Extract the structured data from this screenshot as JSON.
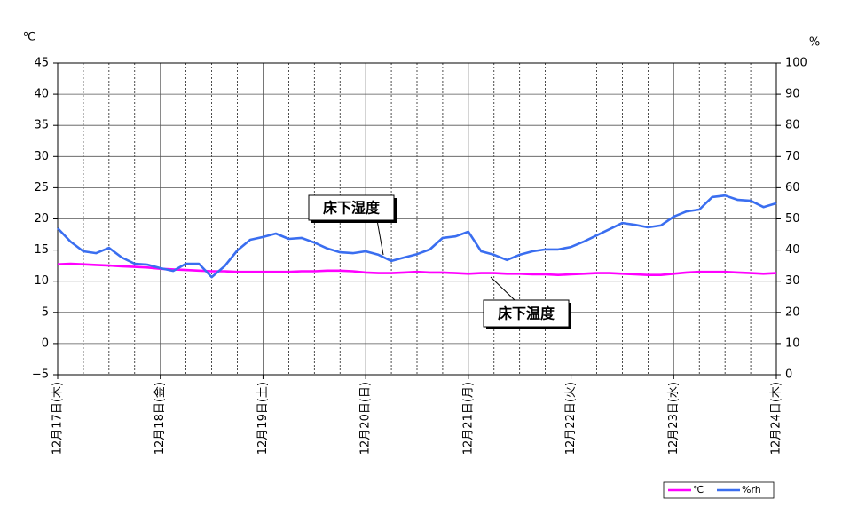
{
  "chart_data": {
    "type": "line",
    "y_label": "℃",
    "y2_label": "%",
    "annotations": [
      "床下湿度",
      "床下温度"
    ],
    "x": [
      0,
      3,
      6,
      9,
      12,
      15,
      18,
      21,
      24,
      27,
      30,
      33,
      36,
      39,
      42,
      45,
      48,
      51,
      54,
      57,
      60,
      63,
      66,
      69,
      72,
      75,
      78,
      81,
      84,
      87,
      90,
      93,
      96,
      99,
      102,
      105,
      108,
      111,
      114,
      117,
      120,
      123,
      126,
      129,
      132,
      135,
      138,
      141,
      144,
      147,
      150,
      153,
      156,
      159,
      162,
      165,
      168
    ],
    "xlim": [
      0,
      168
    ],
    "xticks": [
      {
        "value": 0,
        "label": "12月17日(木)"
      },
      {
        "value": 24,
        "label": "12月18日(金)"
      },
      {
        "value": 48,
        "label": "12月19日(土)"
      },
      {
        "value": 72,
        "label": "12月20日(日)"
      },
      {
        "value": 96,
        "label": "12月21日(月)"
      },
      {
        "value": 120,
        "label": "12月22日(火)"
      },
      {
        "value": 144,
        "label": "12月23日(水)"
      },
      {
        "value": 168,
        "label": "12月24日(木)"
      }
    ],
    "xgrid_minor": [
      6,
      12,
      18,
      30,
      36,
      42,
      54,
      60,
      66,
      78,
      84,
      90,
      102,
      108,
      114,
      126,
      132,
      138,
      150,
      156,
      162
    ],
    "ylim": [
      -5,
      45
    ],
    "yticks": [
      {
        "value": -5,
        "label": "−5"
      },
      0,
      5,
      10,
      15,
      20,
      25,
      30,
      35,
      40,
      45
    ],
    "y2lim": [
      0,
      100
    ],
    "y2ticks": [
      0,
      10,
      20,
      30,
      40,
      50,
      60,
      70,
      80,
      90,
      100
    ],
    "grid": true,
    "legend": "bottom-right",
    "series": [
      {
        "name": "℃",
        "color": "#ff00ff",
        "values": [
          12.7,
          12.8,
          12.7,
          12.6,
          12.5,
          12.4,
          12.3,
          12.2,
          12.0,
          11.9,
          11.8,
          11.7,
          11.6,
          11.6,
          11.5,
          11.5,
          11.5,
          11.5,
          11.5,
          11.6,
          11.6,
          11.7,
          11.7,
          11.6,
          11.4,
          11.3,
          11.3,
          11.4,
          11.5,
          11.4,
          11.4,
          11.3,
          11.2,
          11.3,
          11.3,
          11.2,
          11.2,
          11.1,
          11.1,
          11.0,
          11.1,
          11.2,
          11.3,
          11.3,
          11.2,
          11.1,
          11.0,
          11.0,
          11.2,
          11.4,
          11.5,
          11.5,
          11.5,
          11.4,
          11.3,
          11.2,
          11.3
        ]
      },
      {
        "name": "%rh",
        "color": "#3a6ef0",
        "axis": "y2",
        "values": [
          47,
          42.7,
          39.6,
          39,
          40.7,
          37.6,
          35.6,
          35.3,
          34.2,
          33.3,
          35.6,
          35.6,
          31.3,
          34.8,
          39.9,
          43.3,
          44.2,
          45.3,
          43.6,
          43.9,
          42.4,
          40.5,
          39.3,
          39,
          39.6,
          38.5,
          36.5,
          37.6,
          38.7,
          40.2,
          43.9,
          44.4,
          45.9,
          39.6,
          38.5,
          36.8,
          38.5,
          39.6,
          40.2,
          40.2,
          41,
          42.7,
          44.7,
          46.7,
          48.7,
          48.1,
          47.3,
          47.9,
          50.7,
          52.4,
          53,
          57,
          57.5,
          56.1,
          55.8,
          53.8,
          55
        ]
      }
    ]
  }
}
